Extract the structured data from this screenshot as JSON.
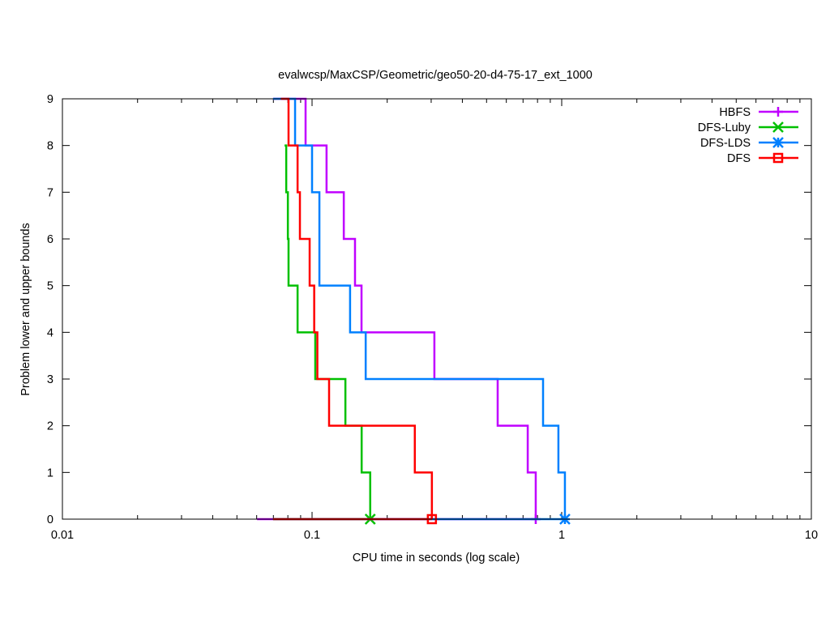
{
  "chart_data": {
    "type": "line",
    "title": "evalwcsp/MaxCSP/Geometric/geo50-20-d4-75-17_ext_1000",
    "xlabel": "CPU time in seconds (log scale)",
    "ylabel": "Problem lower and upper bounds",
    "xscale": "log",
    "xlim": [
      0.01,
      10
    ],
    "ylim": [
      0,
      9
    ],
    "xticks": [
      {
        "v": 0.01,
        "label": "0.01"
      },
      {
        "v": 0.1,
        "label": "0.1"
      },
      {
        "v": 1,
        "label": "1"
      },
      {
        "v": 10,
        "label": "10"
      }
    ],
    "yticks": [
      {
        "v": 0,
        "label": "0"
      },
      {
        "v": 1,
        "label": "1"
      },
      {
        "v": 2,
        "label": "2"
      },
      {
        "v": 3,
        "label": "3"
      },
      {
        "v": 4,
        "label": "4"
      },
      {
        "v": 5,
        "label": "5"
      },
      {
        "v": 6,
        "label": "6"
      },
      {
        "v": 7,
        "label": "7"
      },
      {
        "v": 8,
        "label": "8"
      },
      {
        "v": 9,
        "label": "9"
      }
    ],
    "legend_position": "top-right",
    "series": [
      {
        "name": "HBFS",
        "color": "#c000ff",
        "marker": "plus",
        "lower_start": 0.0602,
        "steps": [
          [
            0.0698,
            9
          ],
          [
            0.0942,
            8
          ],
          [
            0.1143,
            7
          ],
          [
            0.134,
            6
          ],
          [
            0.1486,
            5
          ],
          [
            0.1578,
            4
          ],
          [
            0.309,
            3
          ],
          [
            0.554,
            2
          ],
          [
            0.731,
            1
          ],
          [
            0.787,
            0
          ]
        ]
      },
      {
        "name": "DFS-Luby",
        "color": "#00c000",
        "marker": "cross",
        "lower_start": 0.0698,
        "steps": [
          [
            0.0776,
            8
          ],
          [
            0.0788,
            7
          ],
          [
            0.08,
            6
          ],
          [
            0.0805,
            5
          ],
          [
            0.0875,
            4
          ],
          [
            0.103,
            3
          ],
          [
            0.136,
            2
          ],
          [
            0.158,
            1
          ],
          [
            0.171,
            0
          ]
        ]
      },
      {
        "name": "DFS-LDS",
        "color": "#0080ff",
        "marker": "star",
        "lower_start": 0.0698,
        "steps": [
          [
            0.0698,
            9
          ],
          [
            0.0855,
            8
          ],
          [
            0.1,
            7
          ],
          [
            0.107,
            5
          ],
          [
            0.142,
            4
          ],
          [
            0.164,
            3
          ],
          [
            0.842,
            2
          ],
          [
            0.97,
            1
          ],
          [
            1.03,
            0
          ]
        ]
      },
      {
        "name": "DFS",
        "color": "#ff0000",
        "marker": "square",
        "lower_start": 0.0698,
        "steps": [
          [
            0.075,
            9
          ],
          [
            0.0805,
            8
          ],
          [
            0.0875,
            7
          ],
          [
            0.0894,
            6
          ],
          [
            0.0978,
            5
          ],
          [
            0.102,
            4
          ],
          [
            0.105,
            3
          ],
          [
            0.117,
            2
          ],
          [
            0.258,
            1
          ],
          [
            0.302,
            0
          ]
        ]
      }
    ]
  }
}
